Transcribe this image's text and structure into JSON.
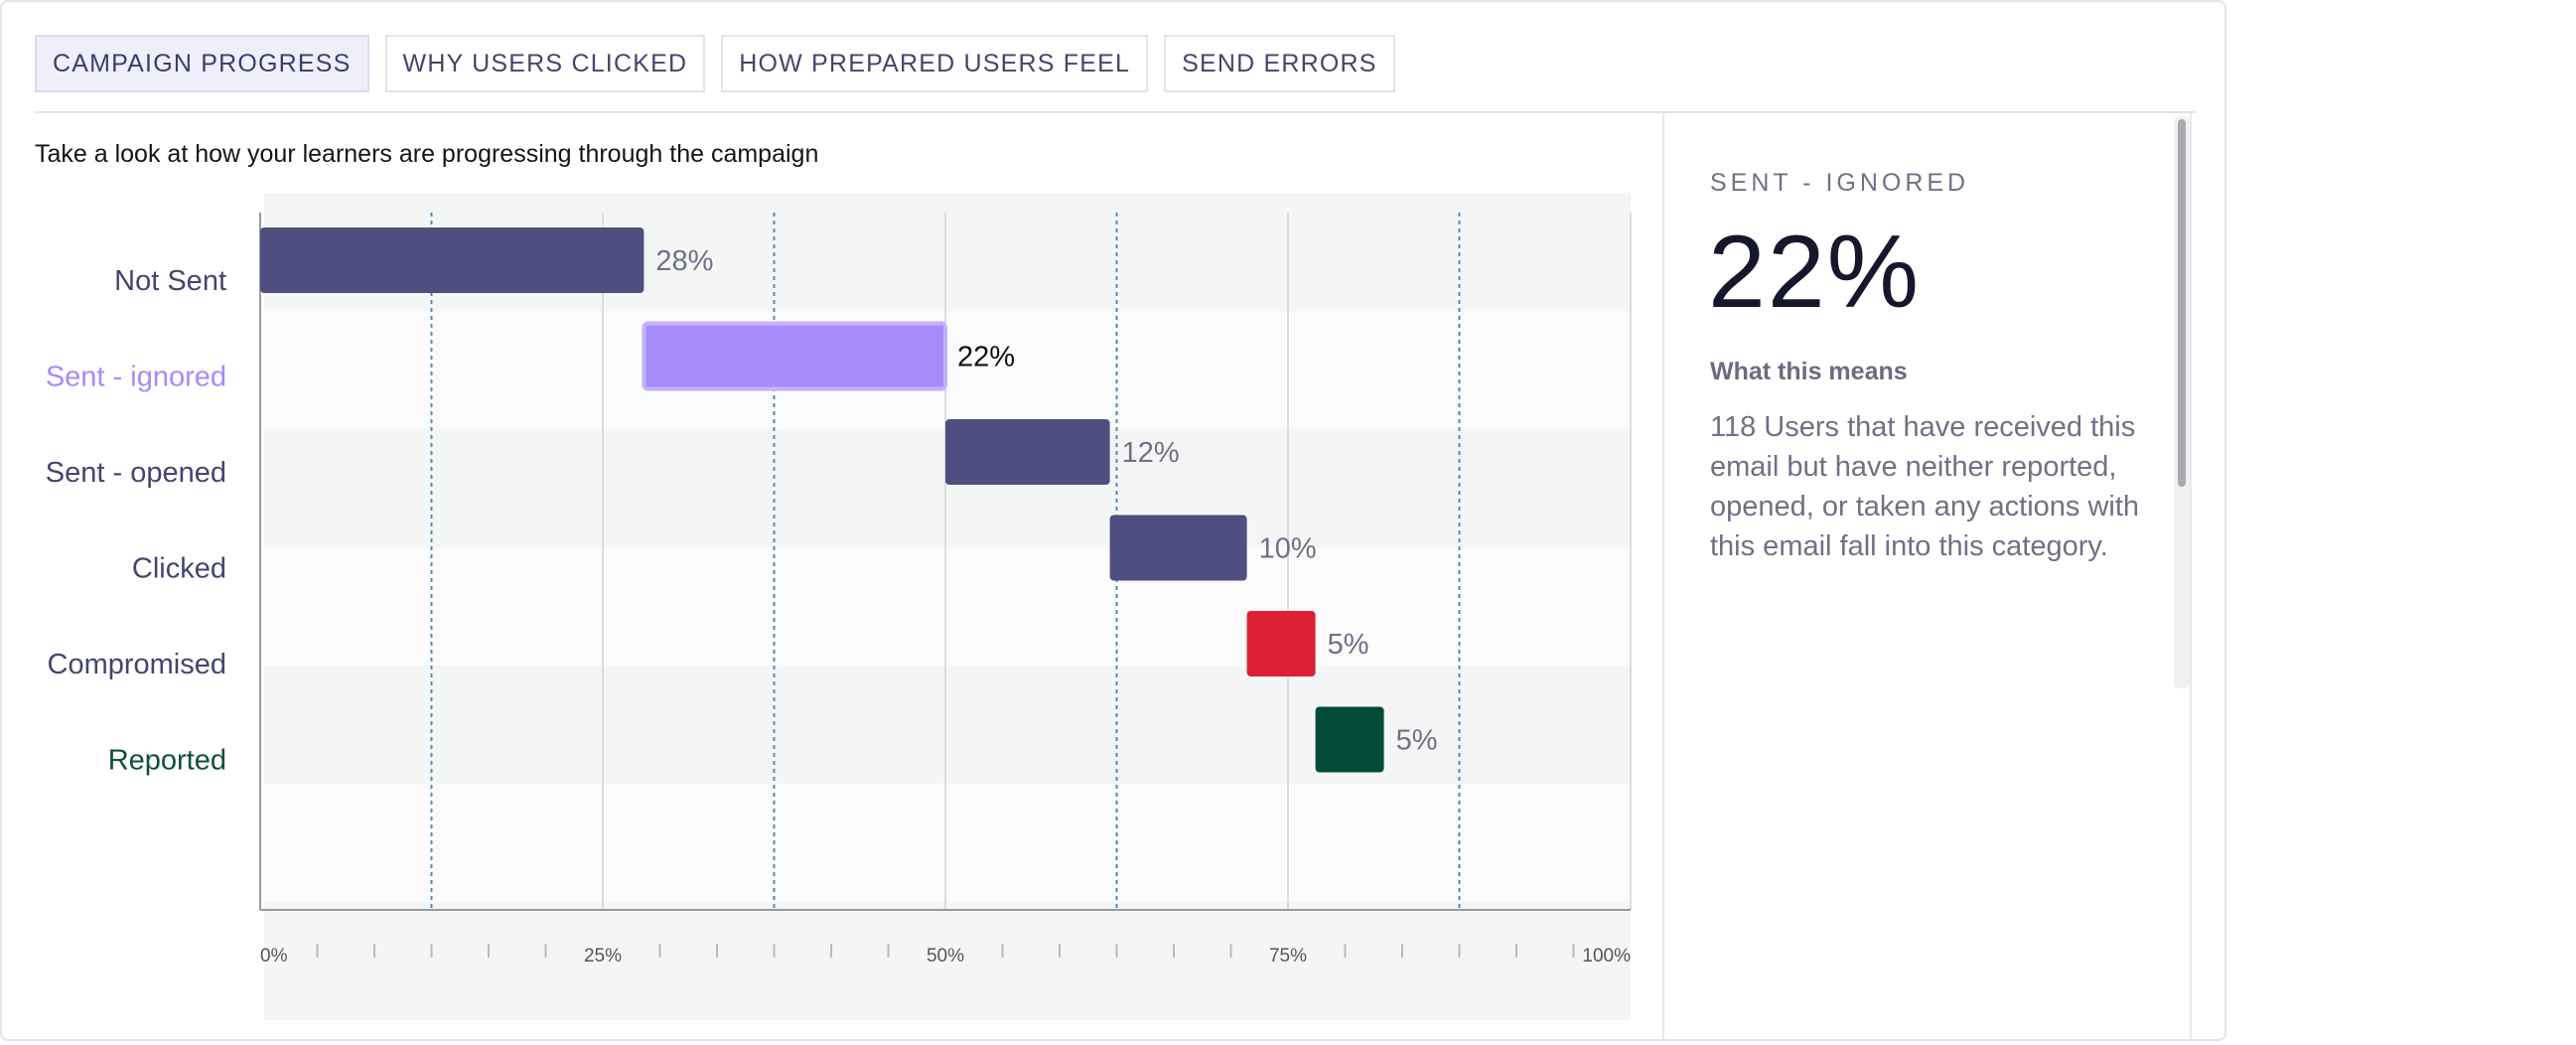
{
  "tabs": [
    {
      "label": "CAMPAIGN PROGRESS",
      "active": true
    },
    {
      "label": "WHY USERS CLICKED",
      "active": false
    },
    {
      "label": "HOW PREPARED USERS FEEL",
      "active": false
    },
    {
      "label": "SEND ERRORS",
      "active": false
    }
  ],
  "intro": "Take a look at how your learners are progressing through the campaign",
  "side_panel": {
    "title": "SENT - IGNORED",
    "value": "22%",
    "what_label": "What this means",
    "description": "118 Users that have received this email but have neither reported, opened, or taken any actions with this email fall into this category."
  },
  "chart_data": {
    "type": "bar",
    "orientation": "horizontal-waterfall",
    "categories": [
      "Not Sent",
      "Sent - ignored",
      "Sent - opened",
      "Clicked",
      "Compromised",
      "Reported"
    ],
    "values": [
      28,
      22,
      12,
      10,
      5,
      5
    ],
    "value_labels": [
      "28%",
      "22%",
      "12%",
      "10%",
      "5%",
      "5%"
    ],
    "colors": [
      "#4f4e80",
      "#a78bfa",
      "#4f4e80",
      "#4f4e80",
      "#db1f35",
      "#024b38"
    ],
    "label_colors": [
      "#444470",
      "#a78bfa",
      "#444470",
      "#444470",
      "#444470",
      "#0c4f3a"
    ],
    "selected_index": 1,
    "xlim": [
      0,
      100
    ],
    "x_ticks": [
      "0%",
      "25%",
      "50%",
      "75%",
      "100%"
    ],
    "grid": true
  }
}
